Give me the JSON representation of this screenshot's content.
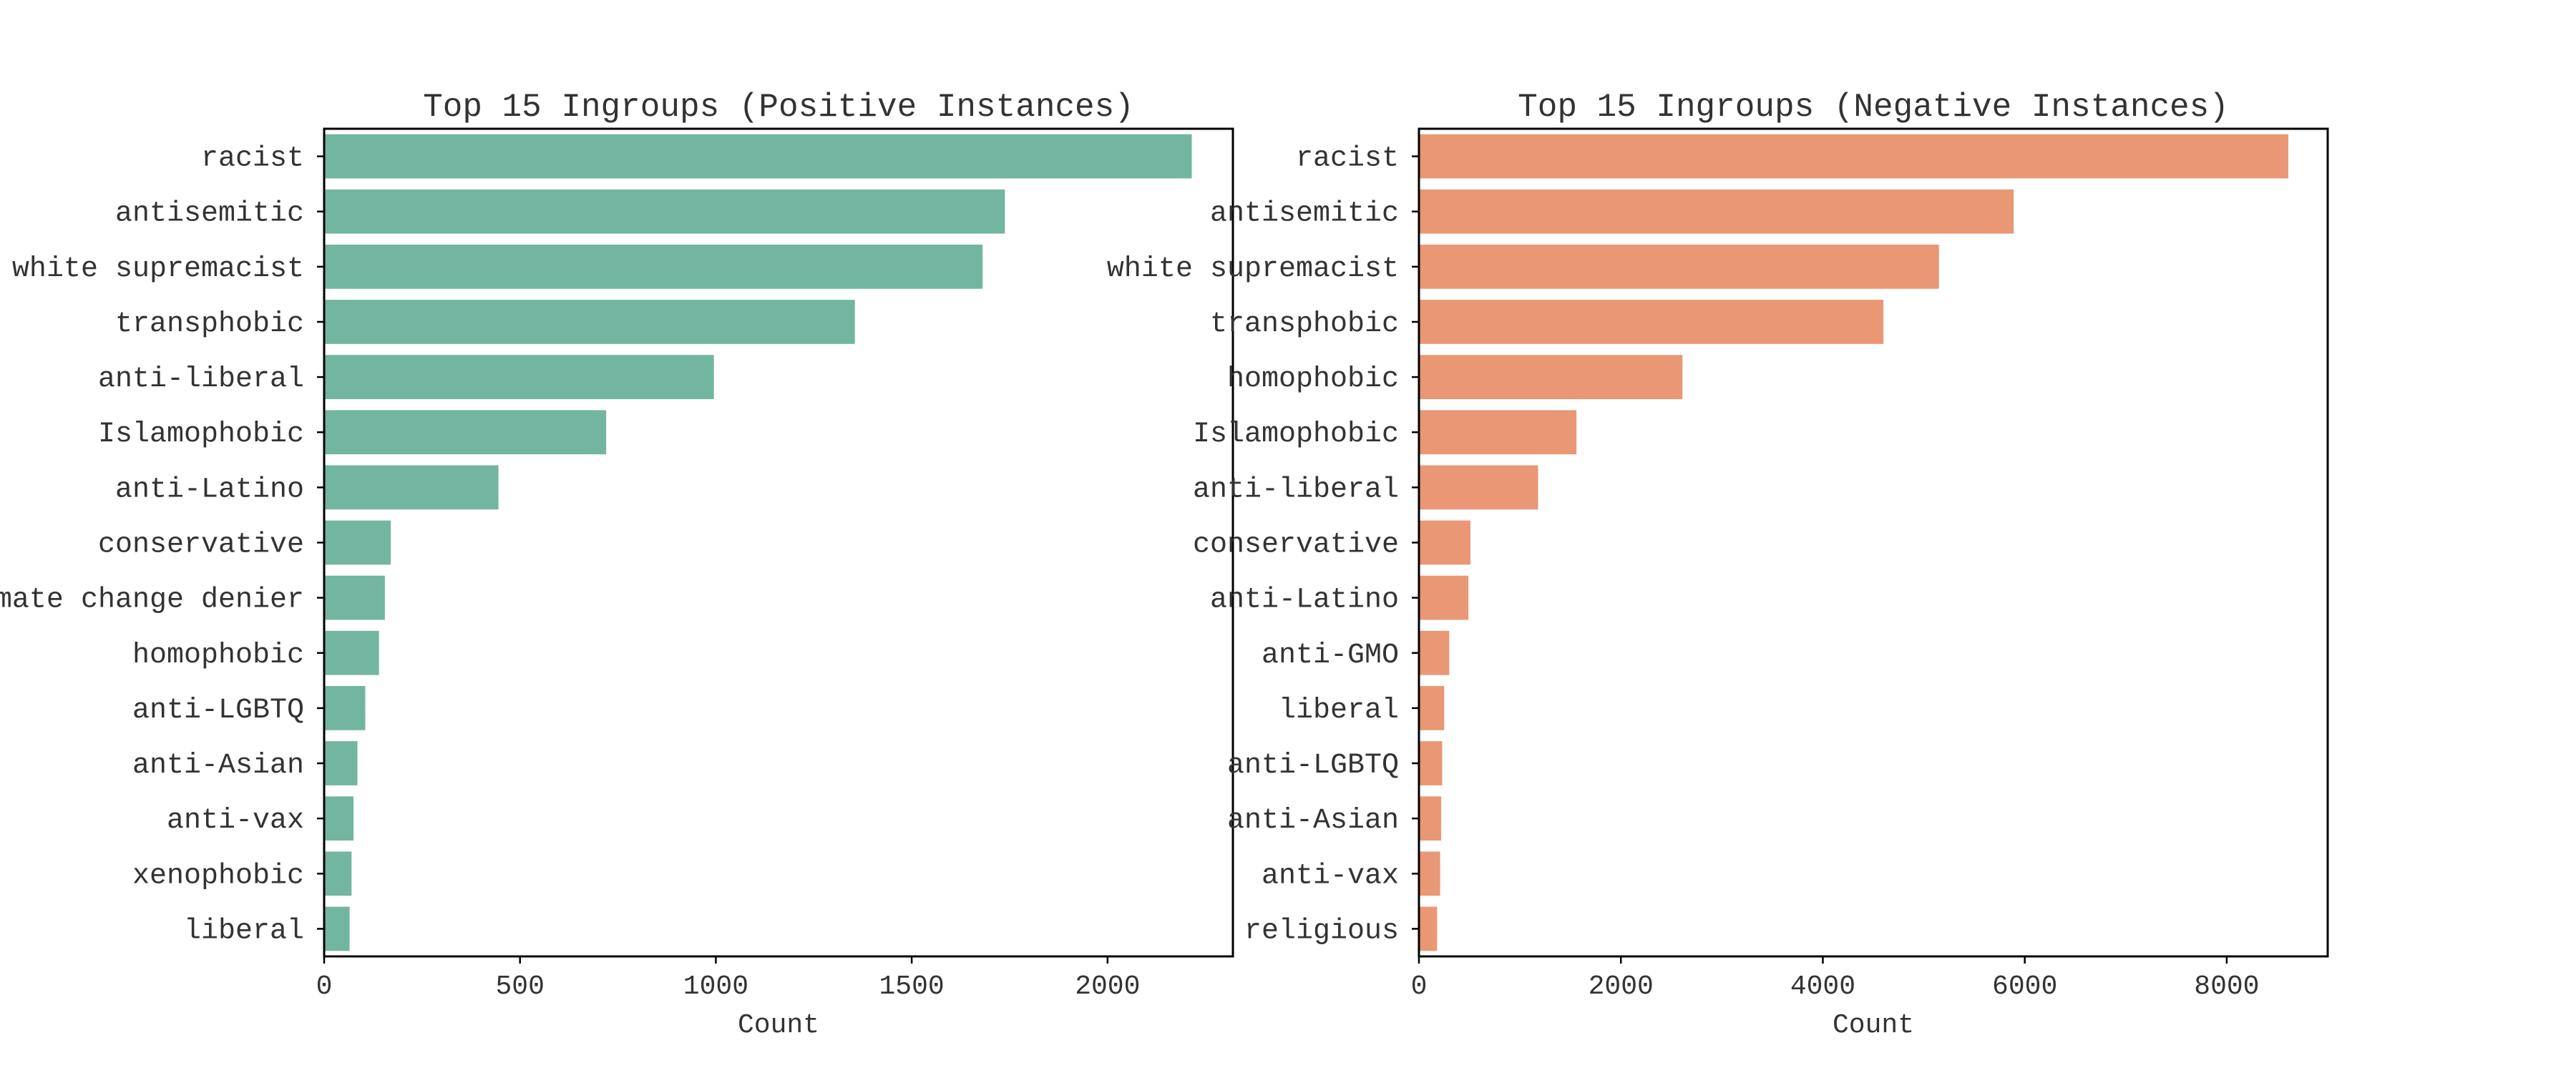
{
  "chart_data": [
    {
      "type": "bar",
      "orientation": "horizontal",
      "title": "Top 15 Ingroups (Positive Instances)",
      "xlabel": "Count",
      "ylabel": "",
      "xlim": [
        0,
        2320
      ],
      "xticks": [
        0,
        500,
        1000,
        1500,
        2000
      ],
      "color": "#72b5a0",
      "grid": false,
      "categories": [
        "racist",
        "antisemitic",
        "white supremacist",
        "transphobic",
        "anti-liberal",
        "Islamophobic",
        "anti-Latino",
        "conservative",
        "climate change denier",
        "homophobic",
        "anti-LGBTQ",
        "anti-Asian",
        "anti-vax",
        "xenophobic",
        "liberal"
      ],
      "values": [
        2215,
        1738,
        1681,
        1355,
        995,
        720,
        445,
        170,
        155,
        140,
        105,
        85,
        75,
        70,
        65
      ]
    },
    {
      "type": "bar",
      "orientation": "horizontal",
      "title": "Top 15 Ingroups (Negative Instances)",
      "xlabel": "Count",
      "ylabel": "",
      "xlim": [
        0,
        9000
      ],
      "xticks": [
        0,
        2000,
        4000,
        6000,
        8000
      ],
      "color": "#e99774",
      "grid": false,
      "categories": [
        "racist",
        "antisemitic",
        "white supremacist",
        "transphobic",
        "homophobic",
        "Islamophobic",
        "anti-liberal",
        "conservative",
        "anti-Latino",
        "anti-GMO",
        "liberal",
        "anti-LGBTQ",
        "anti-Asian",
        "anti-vax",
        "religious"
      ],
      "values": [
        8610,
        5890,
        5150,
        4600,
        2610,
        1560,
        1180,
        510,
        490,
        300,
        250,
        230,
        220,
        210,
        180
      ]
    }
  ]
}
